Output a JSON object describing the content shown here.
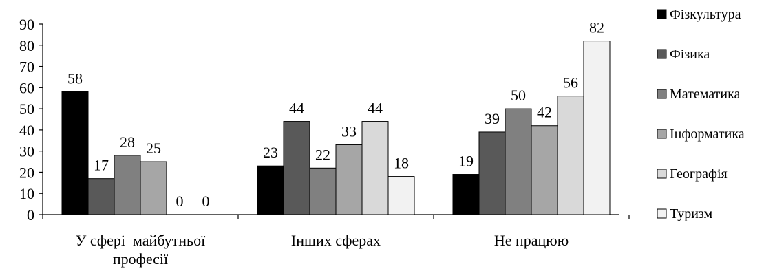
{
  "chart_data": {
    "type": "bar",
    "title": "",
    "xlabel": "",
    "ylabel": "",
    "ylim": [
      0,
      90
    ],
    "yticks": [
      0,
      10,
      20,
      30,
      40,
      50,
      60,
      70,
      80,
      90
    ],
    "grid": false,
    "legend": "right",
    "categories": [
      [
        "У сфері  майбутньої",
        "професії"
      ],
      [
        "Інших сферах"
      ],
      [
        "Не працюю"
      ]
    ],
    "series": [
      {
        "name": "Фізкультура",
        "values": [
          58,
          23,
          19
        ],
        "color": "#000000"
      },
      {
        "name": "Фізика",
        "values": [
          17,
          44,
          39
        ],
        "color": "#595959"
      },
      {
        "name": "Математика",
        "values": [
          28,
          22,
          50
        ],
        "color": "#808080"
      },
      {
        "name": "Інформатика",
        "values": [
          25,
          33,
          42
        ],
        "color": "#a6a6a6"
      },
      {
        "name": "Географія",
        "values": [
          0,
          44,
          56
        ],
        "color": "#d9d9d9"
      },
      {
        "name": "Туризм",
        "values": [
          0,
          18,
          82
        ],
        "color": "#f2f2f2"
      }
    ]
  }
}
